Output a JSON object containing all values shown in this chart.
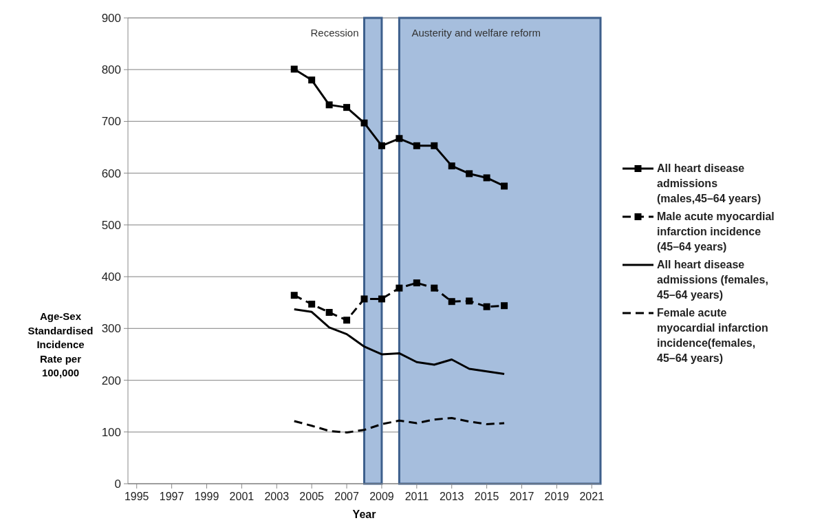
{
  "chart_data": {
    "type": "line",
    "xlabel": "Year",
    "ylabel": "Age-Sex Standardised Incidence Rate per 100,000",
    "x": [
      2004,
      2005,
      2006,
      2007,
      2008,
      2009,
      2010,
      2011,
      2012,
      2013,
      2014,
      2015,
      2016
    ],
    "xlim": [
      1994.5,
      2021.5
    ],
    "xticks": [
      1995,
      1997,
      1999,
      2001,
      2003,
      2005,
      2007,
      2009,
      2011,
      2013,
      2015,
      2017,
      2019,
      2021
    ],
    "ylim": [
      0,
      900
    ],
    "yticks": [
      0,
      100,
      200,
      300,
      400,
      500,
      600,
      700,
      800,
      900
    ],
    "grid": "y",
    "legend": "right",
    "series": [
      {
        "name": "All heart disease admissions (males,45–64 years)",
        "color": "#000000",
        "marker": "square",
        "line_style": "solid",
        "values": [
          801,
          780,
          732,
          727,
          697,
          653,
          667,
          653,
          653,
          614,
          599,
          591,
          575
        ]
      },
      {
        "name": "Male acute myocardial infarction incidence (45–64 years)",
        "color": "#000000",
        "marker": "square",
        "line_style": "dashed",
        "values": [
          364,
          347,
          331,
          316,
          357,
          357,
          378,
          388,
          378,
          352,
          353,
          342,
          344
        ]
      },
      {
        "name": "All heart disease admissions (females, 45–64 years)",
        "color": "#000000",
        "marker": "none",
        "line_style": "solid",
        "values": [
          337,
          332,
          302,
          289,
          265,
          250,
          252,
          235,
          230,
          240,
          222,
          217,
          212
        ]
      },
      {
        "name": "Female acute myocardial infarction incidence(females, 45–64 years)",
        "color": "#000000",
        "marker": "none",
        "line_style": "dashed",
        "values": [
          121,
          112,
          102,
          99,
          104,
          115,
          122,
          117,
          124,
          127,
          120,
          115,
          117
        ]
      }
    ],
    "bands": [
      {
        "axis": "x",
        "from": 2008,
        "to": 2009,
        "label": "Recession",
        "color": "#a6bedd"
      },
      {
        "axis": "x",
        "from": 2010,
        "to": 2021.5,
        "label": "Austerity and welfare reform",
        "color": "#a6bedd"
      }
    ]
  }
}
